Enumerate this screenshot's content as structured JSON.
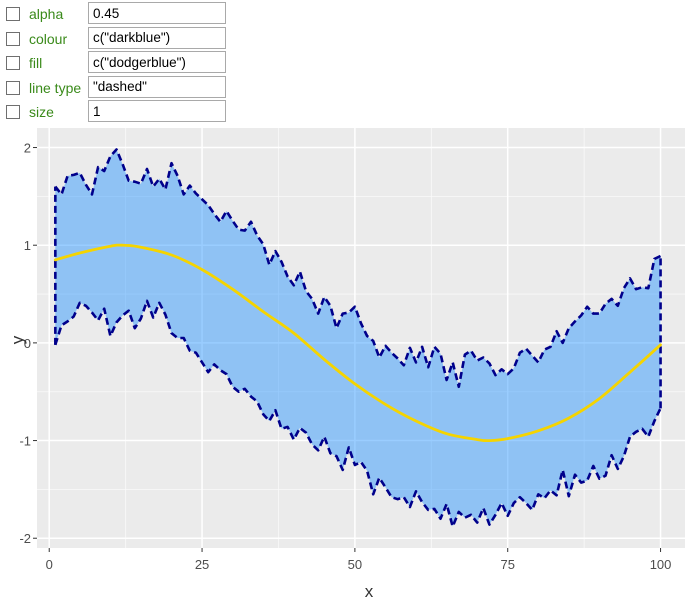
{
  "controls": [
    {
      "label": "alpha",
      "value": "0.45",
      "checked": false
    },
    {
      "label": "colour",
      "value": "c(\"darkblue\")",
      "checked": false
    },
    {
      "label": "fill",
      "value": "c(\"dodgerblue\")",
      "checked": false
    },
    {
      "label": "line type",
      "value": "\"dashed\"",
      "checked": false
    },
    {
      "label": "size",
      "value": "1",
      "checked": false
    }
  ],
  "chart_data": {
    "type": "area",
    "xlabel": "x",
    "ylabel": "y",
    "xlim": [
      -2,
      104
    ],
    "ylim": [
      -2.1,
      2.2
    ],
    "x_ticks": [
      0,
      25,
      50,
      75,
      100
    ],
    "x_tick_labels": [
      "0",
      "25",
      "50",
      "75",
      "100"
    ],
    "y_ticks": [
      -2,
      -1,
      0,
      1,
      2
    ],
    "y_tick_labels": [
      "-2",
      "-1",
      "0",
      "1",
      "2"
    ],
    "grid": true,
    "ribbon": {
      "fill": "#1E90FF",
      "alpha": 0.45,
      "outline_color": "#00008B",
      "linetype": "dashed",
      "x": [
        1,
        2,
        3,
        4,
        5,
        6,
        7,
        8,
        9,
        10,
        11,
        12,
        13,
        14,
        15,
        16,
        17,
        18,
        19,
        20,
        21,
        22,
        23,
        24,
        25,
        26,
        27,
        28,
        29,
        30,
        31,
        32,
        33,
        34,
        35,
        36,
        37,
        38,
        39,
        40,
        41,
        42,
        43,
        44,
        45,
        46,
        47,
        48,
        49,
        50,
        51,
        52,
        53,
        54,
        55,
        56,
        57,
        58,
        59,
        60,
        61,
        62,
        63,
        64,
        65,
        66,
        67,
        68,
        69,
        70,
        71,
        72,
        73,
        74,
        75,
        76,
        77,
        78,
        79,
        80,
        81,
        82,
        83,
        84,
        85,
        86,
        87,
        88,
        89,
        90,
        91,
        92,
        93,
        94,
        95,
        96,
        97,
        98,
        99,
        100
      ],
      "ymin": [
        -0.02,
        0.18,
        0.22,
        0.27,
        0.41,
        0.38,
        0.31,
        0.23,
        0.35,
        0.07,
        0.21,
        0.28,
        0.33,
        0.15,
        0.25,
        0.43,
        0.26,
        0.41,
        0.29,
        0.1,
        0.05,
        0.05,
        -0.08,
        -0.1,
        -0.2,
        -0.3,
        -0.22,
        -0.28,
        -0.32,
        -0.45,
        -0.5,
        -0.47,
        -0.55,
        -0.6,
        -0.73,
        -0.8,
        -0.69,
        -0.88,
        -0.86,
        -0.99,
        -0.87,
        -0.92,
        -1.04,
        -1.1,
        -0.96,
        -1.13,
        -1.16,
        -1.3,
        -1.07,
        -1.25,
        -1.22,
        -1.31,
        -1.55,
        -1.38,
        -1.48,
        -1.58,
        -1.6,
        -1.58,
        -1.68,
        -1.52,
        -1.63,
        -1.71,
        -1.7,
        -1.8,
        -1.65,
        -1.88,
        -1.73,
        -1.79,
        -1.76,
        -1.84,
        -1.69,
        -1.86,
        -1.76,
        -1.64,
        -1.77,
        -1.64,
        -1.58,
        -1.64,
        -1.71,
        -1.55,
        -1.59,
        -1.51,
        -1.56,
        -1.3,
        -1.57,
        -1.35,
        -1.43,
        -1.41,
        -1.26,
        -1.39,
        -1.36,
        -1.15,
        -1.29,
        -1.16,
        -0.96,
        -0.91,
        -0.88,
        -0.96,
        -0.8,
        -0.67
      ],
      "ymax": [
        1.6,
        1.52,
        1.71,
        1.72,
        1.74,
        1.62,
        1.52,
        1.8,
        1.76,
        1.91,
        1.98,
        1.83,
        1.66,
        1.65,
        1.63,
        1.78,
        1.6,
        1.68,
        1.57,
        1.84,
        1.71,
        1.52,
        1.61,
        1.53,
        1.47,
        1.41,
        1.32,
        1.24,
        1.35,
        1.25,
        1.16,
        1.15,
        1.24,
        1.1,
        1.01,
        0.8,
        0.94,
        0.83,
        0.68,
        0.59,
        0.73,
        0.53,
        0.45,
        0.3,
        0.47,
        0.38,
        0.15,
        0.3,
        0.31,
        0.37,
        0.2,
        0.07,
        0.02,
        -0.15,
        -0.03,
        -0.1,
        -0.16,
        -0.23,
        -0.05,
        -0.2,
        -0.04,
        -0.25,
        -0.04,
        -0.11,
        -0.38,
        -0.2,
        -0.45,
        -0.12,
        -0.08,
        -0.18,
        -0.15,
        -0.21,
        -0.33,
        -0.27,
        -0.32,
        -0.26,
        -0.1,
        -0.06,
        -0.13,
        -0.2,
        -0.07,
        -0.04,
        0.12,
        0.0,
        0.15,
        0.22,
        0.28,
        0.37,
        0.3,
        0.3,
        0.4,
        0.45,
        0.38,
        0.56,
        0.66,
        0.55,
        0.57,
        0.56,
        0.86,
        0.89
      ]
    },
    "line": {
      "color": "#F5D400",
      "x": [
        1,
        5,
        10,
        12,
        15,
        20,
        25,
        30,
        35,
        40,
        45,
        50,
        55,
        60,
        65,
        70,
        72,
        75,
        80,
        85,
        90,
        95,
        100
      ],
      "y": [
        0.85,
        0.92,
        0.99,
        1.0,
        0.98,
        0.9,
        0.75,
        0.55,
        0.32,
        0.1,
        -0.17,
        -0.42,
        -0.63,
        -0.8,
        -0.93,
        -0.99,
        -1.0,
        -0.98,
        -0.9,
        -0.77,
        -0.57,
        -0.3,
        -0.02
      ]
    }
  }
}
